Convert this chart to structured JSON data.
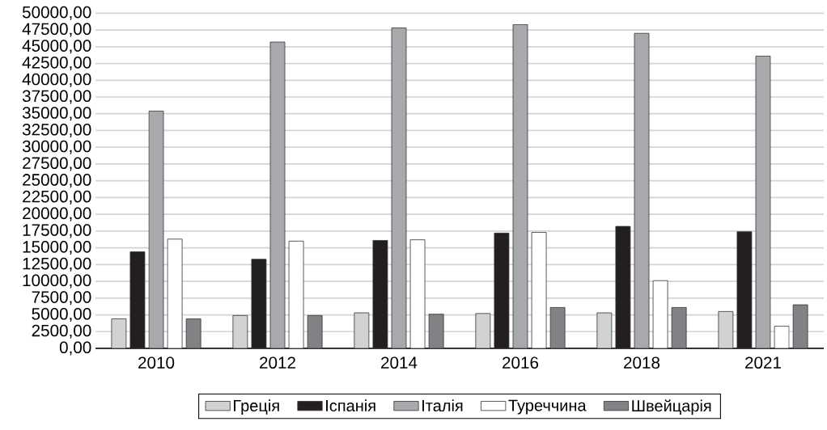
{
  "chart_data": {
    "type": "bar",
    "categories": [
      "2010",
      "2012",
      "2014",
      "2016",
      "2018",
      "2021"
    ],
    "series": [
      {
        "name": "Греція",
        "color": "#d1d2d4",
        "values": [
          4400,
          4900,
          5300,
          5200,
          5300,
          5500
        ]
      },
      {
        "name": "Іспанія",
        "color": "#231f20",
        "values": [
          14400,
          13300,
          16100,
          17200,
          18200,
          17400
        ]
      },
      {
        "name": "Італія",
        "color": "#a7a9ac",
        "values": [
          35400,
          45700,
          47800,
          48300,
          47000,
          43600
        ]
      },
      {
        "name": "Туреччина",
        "color": "#ffffff",
        "values": [
          16300,
          16000,
          16200,
          17300,
          10100,
          3300
        ]
      },
      {
        "name": "Швейцарія",
        "color": "#808285",
        "values": [
          4400,
          4900,
          5100,
          6100,
          6100,
          6500
        ]
      }
    ],
    "ylim": [
      0,
      50000
    ],
    "yticks": [
      {
        "value": 0,
        "label": "0,00"
      },
      {
        "value": 2500,
        "label": "2500,00"
      },
      {
        "value": 5000,
        "label": "5000,00"
      },
      {
        "value": 7500,
        "label": "7500,00"
      },
      {
        "value": 10000,
        "label": "10000,00"
      },
      {
        "value": 12500,
        "label": "12500,00"
      },
      {
        "value": 15000,
        "label": "15000,00"
      },
      {
        "value": 17500,
        "label": "17500,00"
      },
      {
        "value": 20000,
        "label": "20000,00"
      },
      {
        "value": 22500,
        "label": "22500,00"
      },
      {
        "value": 25000,
        "label": "25000,00"
      },
      {
        "value": 27500,
        "label": "27500,00"
      },
      {
        "value": 30000,
        "label": "30000,00"
      },
      {
        "value": 32500,
        "label": "32500,00"
      },
      {
        "value": 35000,
        "label": "35000,00"
      },
      {
        "value": 37500,
        "label": "37500,00"
      },
      {
        "value": 40000,
        "label": "40000,00"
      },
      {
        "value": 42500,
        "label": "42500,00"
      },
      {
        "value": 45000,
        "label": "45000,00"
      },
      {
        "value": 47500,
        "label": "47500,00"
      },
      {
        "value": 50000,
        "label": "50000,00"
      }
    ],
    "grid": "y",
    "legend": "bottom"
  }
}
